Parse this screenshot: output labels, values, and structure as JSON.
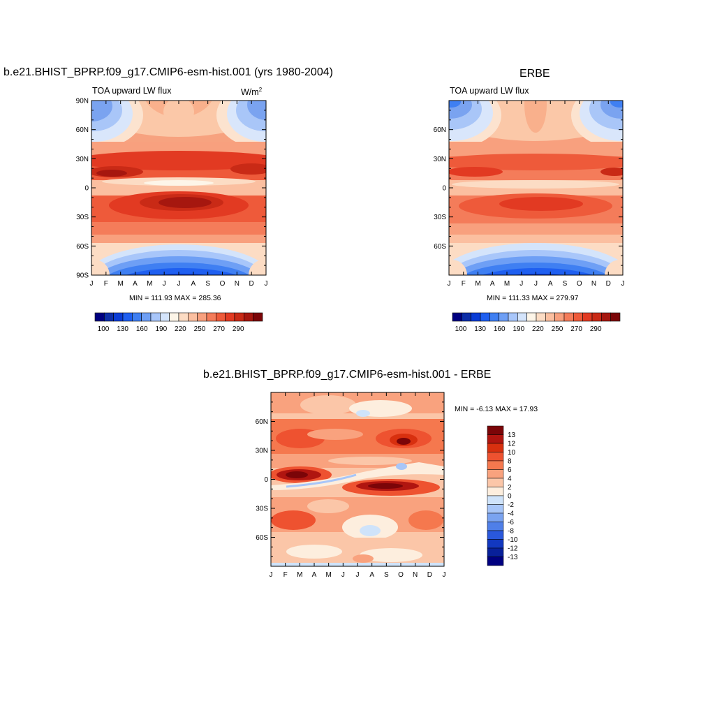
{
  "titles": {
    "model_title": "b.e21.BHIST_BPRP.f09_g17.CMIP6-esm-hist.001 (yrs 1980-2004)",
    "obs_title": "ERBE",
    "diff_title": "b.e21.BHIST_BPRP.f09_g17.CMIP6-esm-hist.001 - ERBE"
  },
  "panel_labels": {
    "model_var": "TOA upward LW flux",
    "model_units": "W/m",
    "model_units_sup": "2",
    "obs_var": "TOA upward LW flux"
  },
  "stats": {
    "model": "MIN = 111.93 MAX = 285.36",
    "obs": "MIN = 111.33 MAX = 279.97",
    "diff": "MIN =  -6.13 MAX =  17.93"
  },
  "chart_data": [
    {
      "type": "heatmap",
      "name": "model",
      "x_ticks": [
        "J",
        "F",
        "M",
        "A",
        "M",
        "J",
        "J",
        "A",
        "S",
        "O",
        "N",
        "D",
        "J"
      ],
      "y_ticks": [
        "90N",
        "60N",
        "30N",
        "0",
        "30S",
        "60S",
        "90S"
      ],
      "y_tick_values": [
        90,
        60,
        30,
        0,
        -30,
        -60,
        -90
      ],
      "ylim": [
        -90,
        90
      ],
      "colorbar": {
        "levels": [
          100,
          110,
          120,
          130,
          140,
          150,
          160,
          170,
          180,
          190,
          200,
          210,
          220,
          230,
          240,
          250,
          260,
          270,
          280,
          290
        ],
        "tick_labels": [
          "100",
          "130",
          "160",
          "190",
          "220",
          "250",
          "270",
          "290"
        ],
        "colors": [
          "#000080",
          "#0d2ea8",
          "#0a3cd6",
          "#1f5ff0",
          "#3f7ff2",
          "#6e9ff5",
          "#a8c6fa",
          "#d4e4fb",
          "#fdf5e8",
          "#fcdcc4",
          "#fbbfa0",
          "#f8a07e",
          "#f47c5a",
          "#ee5a3a",
          "#e23a22",
          "#c92a16",
          "#a6170f",
          "#7b0508"
        ]
      }
    },
    {
      "type": "heatmap",
      "name": "obs",
      "x_ticks": [
        "J",
        "F",
        "M",
        "A",
        "M",
        "J",
        "J",
        "A",
        "S",
        "O",
        "N",
        "D",
        "J"
      ],
      "y_ticks": [
        "60N",
        "30N",
        "0",
        "30S",
        "60S"
      ],
      "y_tick_values": [
        60,
        30,
        0,
        -30,
        -60
      ],
      "ylim": [
        -90,
        90
      ],
      "colorbar": {
        "levels": [
          100,
          110,
          120,
          130,
          140,
          150,
          160,
          170,
          180,
          190,
          200,
          210,
          220,
          230,
          240,
          250,
          260,
          270,
          280,
          290
        ],
        "tick_labels": [
          "100",
          "130",
          "160",
          "190",
          "220",
          "250",
          "270",
          "290"
        ],
        "colors": [
          "#000080",
          "#0d2ea8",
          "#0a3cd6",
          "#1f5ff0",
          "#3f7ff2",
          "#6e9ff5",
          "#a8c6fa",
          "#d4e4fb",
          "#fdf5e8",
          "#fcdcc4",
          "#fbbfa0",
          "#f8a07e",
          "#f47c5a",
          "#ee5a3a",
          "#e23a22",
          "#c92a16",
          "#a6170f",
          "#7b0508"
        ]
      }
    },
    {
      "type": "heatmap",
      "name": "difference",
      "x_ticks": [
        "J",
        "F",
        "M",
        "A",
        "M",
        "J",
        "J",
        "A",
        "S",
        "O",
        "N",
        "D",
        "J"
      ],
      "y_ticks": [
        "60N",
        "30N",
        "0",
        "30S",
        "60S"
      ],
      "y_tick_values": [
        60,
        30,
        0,
        -30,
        -60
      ],
      "ylim": [
        -90,
        90
      ],
      "colorbar": {
        "labels": [
          "13",
          "12",
          "10",
          "8",
          "6",
          "4",
          "2",
          "0",
          "-2",
          "-4",
          "-6",
          "-8",
          "-10",
          "-12",
          "-13"
        ],
        "colors": [
          "#7b0508",
          "#b01510",
          "#d8300f",
          "#ee5230",
          "#f5784e",
          "#f9a27e",
          "#fbc6a8",
          "#fdeede",
          "#cfe3fa",
          "#a8c6f8",
          "#7aa3f0",
          "#4f7fe8",
          "#2a58dc",
          "#1238c0",
          "#08209a",
          "#000080"
        ]
      }
    }
  ]
}
